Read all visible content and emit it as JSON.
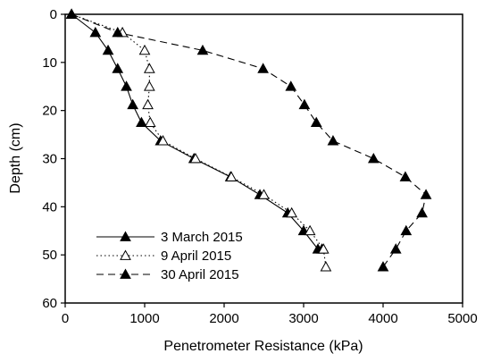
{
  "chart_data": {
    "type": "line",
    "title": "",
    "xlabel": "Penetrometer Resistance (kPa)",
    "ylabel": "Depth (cm)",
    "xlim": [
      0,
      5000
    ],
    "ylim": [
      0,
      60
    ],
    "y_inverted": true,
    "x_ticks": [
      "0",
      "1000",
      "2000",
      "3000",
      "4000",
      "5000"
    ],
    "y_ticks": [
      "0",
      "10",
      "20",
      "30",
      "40",
      "50",
      "60"
    ],
    "grid": false,
    "legend_position": "bottom-left",
    "series": [
      {
        "name": "3 March 2015",
        "line_style": "solid",
        "marker": "filled-triangle",
        "color": "#000000",
        "x": [
          80,
          380,
          540,
          660,
          770,
          850,
          960,
          1200,
          1620,
          2080,
          2450,
          2800,
          3000,
          3180,
          3230
        ],
        "y": [
          0,
          3.8,
          7.5,
          11.3,
          15,
          18.8,
          22.5,
          26.3,
          30,
          33.8,
          37.5,
          41.3,
          45,
          48.8,
          48.8
        ]
      },
      {
        "name": "9 April 2015",
        "line_style": "dotted",
        "marker": "open-triangle",
        "color": "#000000",
        "x": [
          80,
          720,
          1000,
          1060,
          1060,
          1040,
          1070,
          1230,
          1640,
          2090,
          2500,
          2850,
          3080,
          3250,
          3280
        ],
        "y": [
          0,
          3.8,
          7.5,
          11.3,
          15,
          18.8,
          22.5,
          26.3,
          30,
          33.8,
          37.5,
          41.3,
          45,
          48.8,
          52.5
        ]
      },
      {
        "name": "30 April 2015",
        "line_style": "dashed",
        "marker": "filled-triangle",
        "color": "#000000",
        "x": [
          80,
          660,
          1730,
          2490,
          2840,
          3010,
          3160,
          3370,
          3880,
          4280,
          4540,
          4490,
          4290,
          4160,
          4000
        ],
        "y": [
          0,
          3.8,
          7.5,
          11.3,
          15,
          18.8,
          22.5,
          26.3,
          30,
          33.8,
          37.5,
          41.3,
          45,
          48.8,
          52.5
        ]
      }
    ]
  }
}
